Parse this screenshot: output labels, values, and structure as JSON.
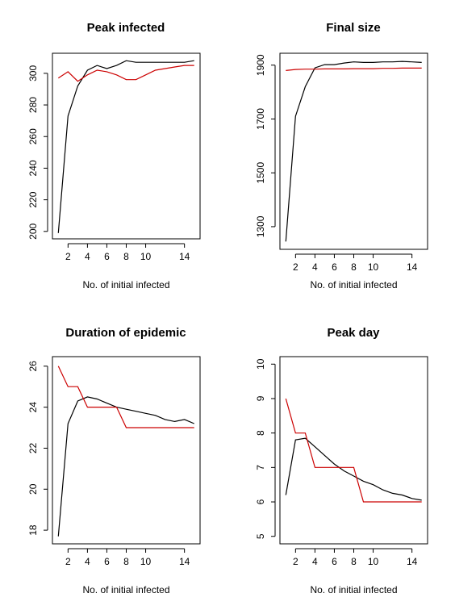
{
  "chart_data": [
    {
      "type": "line",
      "title": "Peak infected",
      "xlabel": "No. of initial infected",
      "ylabel": "",
      "x": [
        1,
        2,
        3,
        4,
        5,
        6,
        7,
        8,
        9,
        10,
        11,
        12,
        13,
        14,
        15
      ],
      "xticks": [
        2,
        4,
        6,
        8,
        10,
        14
      ],
      "xlim": [
        1,
        15
      ],
      "ylim": [
        200,
        308
      ],
      "yticks": [
        200,
        220,
        240,
        260,
        280,
        300
      ],
      "series": [
        {
          "color": "#000000",
          "values": [
            199,
            273,
            292,
            302,
            305,
            303,
            305,
            308,
            307,
            307,
            307,
            307,
            307,
            307,
            308
          ]
        },
        {
          "color": "#cc0000",
          "values": [
            297,
            301,
            295,
            299,
            302,
            301,
            299,
            296,
            296,
            299,
            302,
            303,
            304,
            305,
            305
          ]
        }
      ]
    },
    {
      "type": "line",
      "title": "Final size",
      "xlabel": "No. of initial infected",
      "ylabel": "",
      "x": [
        1,
        2,
        3,
        4,
        5,
        6,
        7,
        8,
        9,
        10,
        11,
        12,
        13,
        14,
        15
      ],
      "xticks": [
        2,
        4,
        6,
        8,
        10,
        14
      ],
      "xlim": [
        1,
        15
      ],
      "ylim": [
        1245,
        1915
      ],
      "yticks": [
        1300,
        1500,
        1700,
        1900
      ],
      "series": [
        {
          "color": "#000000",
          "values": [
            1245,
            1710,
            1820,
            1890,
            1902,
            1902,
            1908,
            1912,
            1910,
            1910,
            1912,
            1912,
            1914,
            1912,
            1910
          ]
        },
        {
          "color": "#cc0000",
          "values": [
            1880,
            1884,
            1885,
            1885,
            1886,
            1886,
            1886,
            1887,
            1887,
            1887,
            1888,
            1888,
            1889,
            1889,
            1889
          ]
        }
      ]
    },
    {
      "type": "line",
      "title": "Duration of epidemic",
      "xlabel": "No. of initial infected",
      "ylabel": "",
      "x": [
        1,
        2,
        3,
        4,
        5,
        6,
        7,
        8,
        9,
        10,
        11,
        12,
        13,
        14,
        15
      ],
      "xticks": [
        2,
        4,
        6,
        8,
        10,
        14
      ],
      "xlim": [
        1,
        15
      ],
      "ylim": [
        17.7,
        26.1
      ],
      "yticks": [
        18,
        20,
        22,
        24,
        26
      ],
      "series": [
        {
          "color": "#000000",
          "values": [
            17.7,
            23.2,
            24.3,
            24.5,
            24.4,
            24.2,
            24.0,
            23.9,
            23.8,
            23.7,
            23.6,
            23.4,
            23.3,
            23.4,
            23.2
          ]
        },
        {
          "color": "#cc0000",
          "values": [
            26,
            25,
            25,
            24,
            24,
            24,
            24,
            23,
            23,
            23,
            23,
            23,
            23,
            23,
            23
          ]
        }
      ]
    },
    {
      "type": "line",
      "title": "Peak day",
      "xlabel": "No. of initial infected",
      "ylabel": "",
      "x": [
        1,
        2,
        3,
        4,
        5,
        6,
        7,
        8,
        9,
        10,
        11,
        12,
        13,
        14,
        15
      ],
      "xticks": [
        2,
        4,
        6,
        8,
        10,
        14
      ],
      "xlim": [
        1,
        15
      ],
      "ylim": [
        5,
        10
      ],
      "yticks": [
        5,
        6,
        7,
        8,
        9,
        10
      ],
      "series": [
        {
          "color": "#000000",
          "values": [
            6.2,
            7.8,
            7.85,
            7.6,
            7.35,
            7.1,
            6.9,
            6.75,
            6.6,
            6.5,
            6.35,
            6.25,
            6.2,
            6.1,
            6.05
          ]
        },
        {
          "color": "#cc0000",
          "values": [
            9,
            8,
            8,
            7,
            7,
            7,
            7,
            7,
            6,
            6,
            6,
            6,
            6,
            6,
            6
          ]
        }
      ]
    }
  ]
}
